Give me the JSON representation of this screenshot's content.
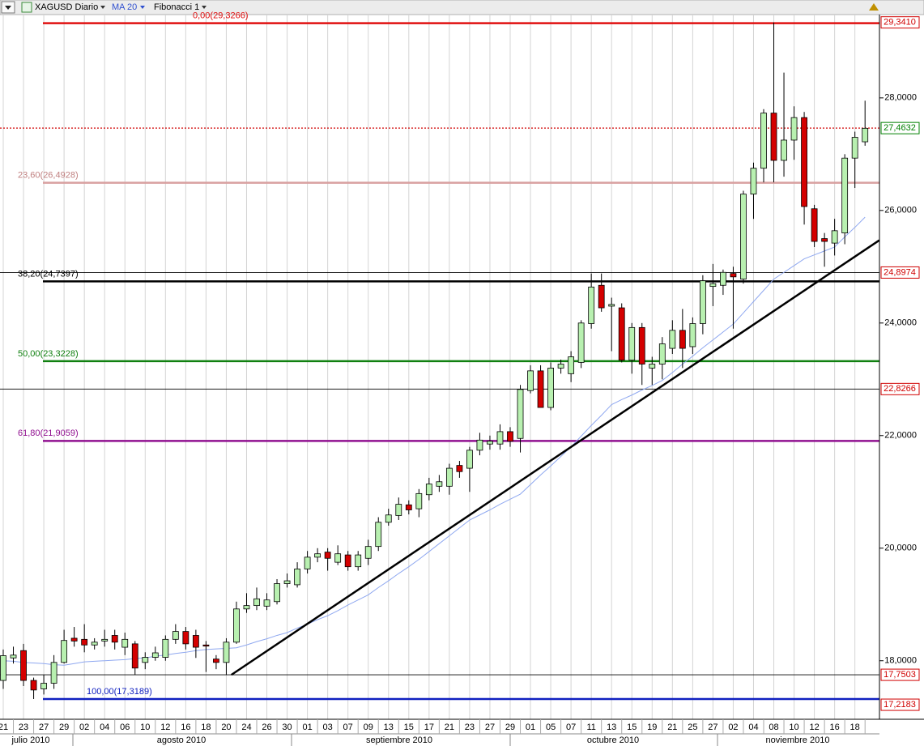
{
  "toolbar": {
    "symbol": "XAGUSD Diario",
    "indicator": "MA 20",
    "tool": "Fibonacci 1"
  },
  "chart_data": {
    "type": "candlestick",
    "categories": [
      "21",
      null,
      "23",
      null,
      "27",
      null,
      "29",
      null,
      "02",
      null,
      "04",
      null,
      "06",
      null,
      "10",
      null,
      "12",
      null,
      "16",
      null,
      "18",
      null,
      "20",
      null,
      "24",
      null,
      "26",
      null,
      "30",
      null,
      "01",
      null,
      "03",
      null,
      "07",
      null,
      "09",
      null,
      "13",
      null,
      "15",
      null,
      "17",
      null,
      "21",
      null,
      "23",
      null,
      "27",
      null,
      "29",
      null,
      "01",
      null,
      "05",
      null,
      "07",
      null,
      "11",
      null,
      "13",
      null,
      "15",
      null,
      "19",
      null,
      "21",
      null,
      "25",
      null,
      "27",
      null,
      "02",
      null,
      "04",
      null,
      "08",
      null,
      "10",
      null,
      "12",
      null,
      "16",
      null,
      "18",
      null
    ],
    "months": [
      "julio 2010",
      "agosto 2010",
      "septiembre 2010",
      "octubre 2010",
      "noviembre 2010"
    ],
    "open": [
      17.65,
      18.05,
      18.18,
      17.65,
      17.5,
      17.6,
      17.97,
      18.4,
      18.38,
      18.28,
      18.35,
      18.45,
      18.24,
      18.3,
      17.97,
      18.06,
      18.06,
      18.38,
      18.52,
      18.45,
      18.28,
      18.03,
      17.97,
      18.33,
      18.92,
      18.98,
      18.97,
      19.05,
      19.37,
      19.35,
      19.63,
      19.84,
      19.93,
      19.75,
      19.88,
      19.67,
      19.82,
      20.03,
      20.46,
      20.58,
      20.77,
      20.7,
      20.95,
      21.1,
      21.1,
      21.47,
      21.42,
      21.74,
      21.85,
      21.85,
      22.07,
      21.95,
      22.8,
      23.15,
      22.5,
      23.2,
      23.1,
      23.3,
      23.99,
      24.67,
      24.3,
      24.27,
      23.34,
      23.92,
      23.2,
      23.27,
      23.55,
      23.87,
      23.58,
      23.99,
      24.65,
      24.67,
      24.88,
      24.78,
      26.29,
      26.75,
      27.73,
      26.89,
      27.25,
      27.65,
      26.03,
      25.5,
      25.42,
      25.6,
      26.93,
      27.22
    ],
    "high": [
      18.2,
      18.25,
      18.3,
      17.7,
      17.75,
      18.1,
      18.55,
      18.6,
      18.65,
      18.4,
      18.55,
      18.55,
      18.5,
      18.35,
      18.15,
      18.25,
      18.45,
      18.65,
      18.6,
      18.55,
      18.35,
      18.1,
      18.4,
      19.05,
      19.2,
      19.3,
      19.2,
      19.45,
      19.55,
      19.75,
      19.95,
      20.0,
      20.0,
      20.05,
      19.95,
      19.95,
      20.15,
      20.55,
      20.7,
      20.9,
      20.85,
      21.05,
      21.25,
      21.3,
      21.5,
      21.55,
      21.8,
      22.05,
      22.0,
      22.2,
      22.15,
      22.9,
      23.25,
      23.25,
      23.3,
      23.35,
      23.5,
      24.05,
      24.88,
      24.88,
      24.45,
      24.35,
      24.0,
      24.0,
      23.4,
      23.75,
      24.05,
      24.25,
      24.1,
      24.85,
      25.05,
      24.95,
      25.0,
      26.35,
      26.85,
      27.8,
      29.34,
      28.45,
      27.85,
      27.75,
      26.1,
      25.6,
      25.85,
      27.0,
      27.4,
      27.95
    ],
    "low": [
      17.5,
      17.95,
      17.55,
      17.32,
      17.4,
      17.5,
      17.95,
      18.25,
      18.15,
      18.2,
      18.25,
      18.2,
      18.1,
      17.75,
      17.85,
      18.0,
      18.0,
      18.3,
      18.2,
      18.05,
      17.8,
      17.85,
      17.75,
      18.3,
      18.85,
      18.9,
      18.9,
      19.0,
      19.3,
      19.3,
      19.55,
      19.75,
      19.6,
      19.7,
      19.6,
      19.6,
      19.7,
      19.95,
      20.4,
      20.5,
      20.6,
      20.55,
      20.85,
      21.0,
      20.95,
      21.25,
      21.0,
      21.65,
      21.75,
      21.75,
      21.8,
      21.7,
      22.75,
      22.5,
      22.45,
      23.1,
      22.95,
      23.2,
      23.9,
      24.2,
      23.5,
      23.3,
      23.1,
      22.9,
      22.9,
      23.0,
      23.45,
      23.2,
      23.45,
      23.8,
      24.3,
      24.5,
      23.9,
      24.7,
      25.85,
      26.5,
      26.5,
      26.6,
      26.9,
      25.75,
      25.35,
      25.0,
      25.2,
      25.4,
      26.4,
      27.15
    ],
    "close": [
      18.09,
      18.1,
      17.65,
      17.48,
      17.6,
      17.97,
      18.36,
      18.35,
      18.28,
      18.33,
      18.38,
      18.33,
      18.38,
      17.87,
      18.06,
      18.14,
      18.38,
      18.52,
      18.3,
      18.24,
      18.26,
      17.97,
      18.33,
      18.92,
      18.98,
      19.1,
      19.08,
      19.37,
      19.42,
      19.63,
      19.84,
      19.9,
      19.82,
      19.9,
      19.67,
      19.88,
      20.03,
      20.46,
      20.59,
      20.78,
      20.68,
      20.97,
      21.14,
      21.18,
      21.42,
      21.36,
      21.74,
      21.92,
      21.9,
      22.07,
      21.9,
      22.82,
      23.15,
      22.5,
      23.2,
      23.27,
      23.4,
      24.0,
      24.64,
      24.27,
      24.33,
      23.34,
      23.92,
      23.27,
      23.27,
      23.63,
      23.87,
      23.55,
      23.99,
      24.75,
      24.7,
      24.9,
      24.82,
      26.29,
      26.75,
      27.73,
      26.89,
      27.25,
      27.65,
      26.07,
      25.45,
      25.45,
      25.64,
      26.93,
      27.3,
      27.46
    ],
    "up_color": "#b8f0b0",
    "down_color": "#d40000",
    "ma": {
      "name": "MA 20",
      "color": "#8fa8f0",
      "values": [
        18.0,
        17.99,
        17.97,
        17.96,
        17.95,
        17.93,
        17.92,
        17.95,
        17.98,
        17.99,
        18.0,
        18.01,
        18.02,
        18.04,
        18.05,
        18.08,
        18.1,
        18.13,
        18.15,
        18.18,
        18.2,
        18.21,
        18.22,
        18.23,
        18.28,
        18.34,
        18.39,
        18.45,
        18.5,
        18.58,
        18.65,
        18.73,
        18.8,
        18.89,
        18.99,
        19.08,
        19.17,
        19.3,
        19.42,
        19.55,
        19.67,
        19.8,
        19.94,
        20.08,
        20.22,
        20.36,
        20.5,
        20.59,
        20.68,
        20.78,
        20.87,
        20.96,
        21.13,
        21.3,
        21.46,
        21.63,
        21.8,
        21.99,
        22.18,
        22.36,
        22.55,
        22.64,
        22.72,
        22.81,
        22.89,
        22.98,
        23.12,
        23.27,
        23.41,
        23.56,
        23.7,
        23.84,
        23.98,
        24.18,
        24.38,
        24.58,
        24.78,
        24.9,
        25.02,
        25.14,
        25.21,
        25.28,
        25.35,
        25.53,
        25.7,
        25.88
      ]
    },
    "trendline": {
      "x": [
        22.5,
        86.4
      ],
      "y": [
        17.75,
        25.47
      ]
    },
    "fib_levels": [
      {
        "label": "0,00(29,3266)",
        "value": 29.3266,
        "color": "#e01010"
      },
      {
        "label": "23,60(26,4928)",
        "value": 26.4928,
        "color": "#d8a0a0"
      },
      {
        "label": "38,20(24,7397)",
        "value": 24.7397,
        "color": "#000000"
      },
      {
        "label": "50,00(23,3228)",
        "value": 23.3228,
        "color": "#108010"
      },
      {
        "label": "61,80(21,9059)",
        "value": 21.9059,
        "color": "#901090"
      },
      {
        "label": "100,00(17,3189)",
        "value": 17.3189,
        "color": "#1020c0"
      }
    ],
    "hlines": [
      24.8974,
      22.8266,
      17.7503
    ],
    "last_price": {
      "value": 27.4632,
      "label": "27,4632",
      "color": "#d00000",
      "label_color": "#008000"
    },
    "price_labels": [
      {
        "value": 29.341,
        "label": "29,3410"
      },
      {
        "value": 24.8974,
        "label": "24,8974"
      },
      {
        "value": 22.8266,
        "label": "22,8266"
      },
      {
        "value": 17.7503,
        "label": "17,7503"
      },
      {
        "value": 17.2183,
        "label": "17,2183"
      }
    ],
    "price_label_color": "#d00000",
    "ylim": [
      16.96,
      29.48
    ],
    "yticks": [
      {
        "value": 18,
        "label": "18,0000"
      },
      {
        "value": 20,
        "label": "20,0000"
      },
      {
        "value": 22,
        "label": "22,0000"
      },
      {
        "value": 24,
        "label": "24,0000"
      },
      {
        "value": 26,
        "label": "26,0000"
      },
      {
        "value": 28,
        "label": "28,0000"
      }
    ],
    "grid": true
  }
}
